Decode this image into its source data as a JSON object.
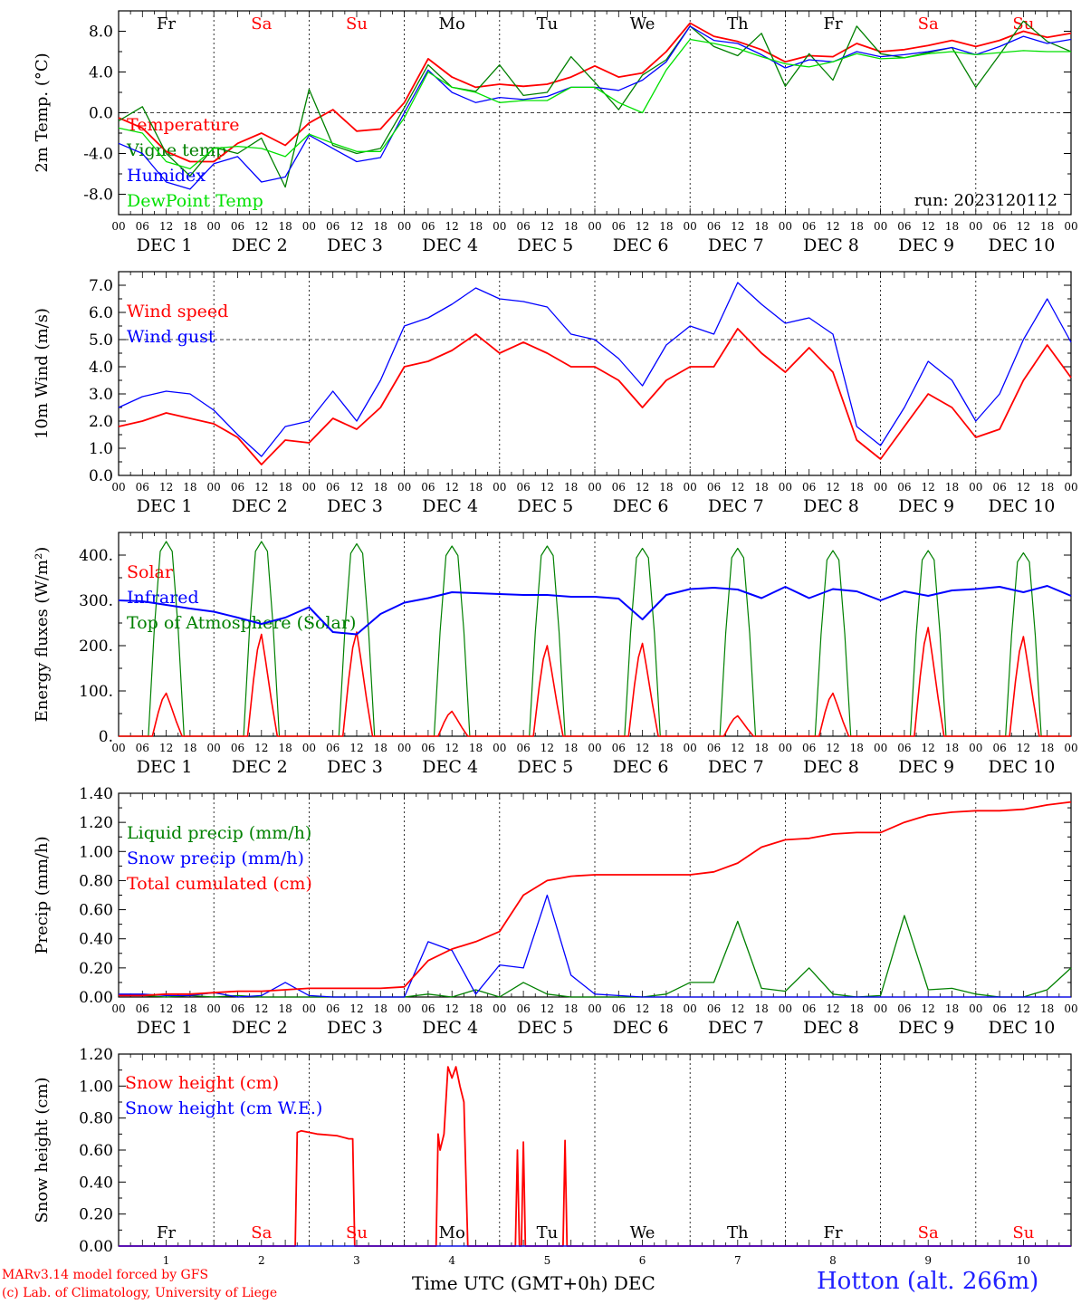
{
  "footer": {
    "model": "MARv3.14 model forced by GFS",
    "credit": "(c) Lab. of Climatology, University of Liege",
    "xlabel": "Time UTC (GMT+0h) DEC",
    "station": "Hotton (alt. 266m)"
  },
  "colors": {
    "red": "#ff0000",
    "green": "#008000",
    "blue": "#0000ff",
    "lightgreen": "#00e000",
    "weekend": "#ff0000",
    "weekday": "#000000"
  },
  "chart_data": [
    {
      "type": "line",
      "ylabel": "2m Temp. (°C)",
      "ylim": [
        -10,
        10
      ],
      "yticks": [
        -8,
        -4,
        0,
        4,
        8
      ],
      "ytick_labels": [
        "-8.0",
        "-4.0",
        "0.0",
        "4.0",
        "8.0"
      ],
      "ref_line": 0,
      "annotation": "run: 2023120112",
      "day_labels": [
        "Fr",
        "Sa",
        "Su",
        "Mo",
        "Tu",
        "We",
        "Th",
        "Fr",
        "Sa",
        "Su"
      ],
      "day_labels_pos": "top",
      "x_hours": [
        0,
        6,
        12,
        18,
        24,
        30,
        36,
        42,
        48,
        54,
        60,
        66,
        72,
        78,
        84,
        90,
        96,
        102,
        108,
        114,
        120,
        126,
        132,
        138,
        144,
        150,
        156,
        162,
        168,
        174,
        180,
        186,
        192,
        198,
        204,
        210,
        216,
        222,
        228,
        234,
        240
      ],
      "series": [
        {
          "name": "Temperature",
          "color": "red",
          "values": [
            -0.5,
            -1.5,
            -3.8,
            -4.8,
            -4.8,
            -3.0,
            -2.0,
            -3.2,
            -1.0,
            0.3,
            -1.8,
            -1.6,
            1.0,
            5.3,
            3.5,
            2.5,
            2.8,
            2.6,
            2.8,
            3.5,
            4.6,
            3.5,
            3.9,
            6.0,
            8.8,
            7.5,
            7.0,
            6.2,
            5.0,
            5.6,
            5.5,
            6.8,
            6.0,
            6.2,
            6.6,
            7.1,
            6.5,
            7.1,
            8.0,
            7.4,
            7.8
          ]
        },
        {
          "name": "Vigne temp",
          "color": "green",
          "values": [
            -0.8,
            0.6,
            -4.0,
            -6.2,
            -3.4,
            -4.0,
            -2.5,
            -7.3,
            2.3,
            -3.2,
            -4.0,
            -3.5,
            0.5,
            4.7,
            2.5,
            2.1,
            4.7,
            1.7,
            2.0,
            5.5,
            3.0,
            0.3,
            3.7,
            5.2,
            8.5,
            6.5,
            5.6,
            7.8,
            2.6,
            5.8,
            3.2,
            8.5,
            5.8,
            5.4,
            5.9,
            6.4,
            2.5,
            5.7,
            9.0,
            7.0,
            6.0
          ]
        },
        {
          "name": "Humidex",
          "color": "blue",
          "values": [
            -3.0,
            -4.0,
            -6.8,
            -7.5,
            -5.0,
            -4.3,
            -6.8,
            -6.3,
            -2.2,
            -3.5,
            -4.8,
            -4.4,
            0.0,
            4.2,
            2.0,
            1.0,
            1.5,
            1.3,
            1.6,
            2.5,
            2.5,
            2.2,
            3.2,
            5.0,
            8.5,
            7.1,
            6.8,
            5.7,
            4.4,
            5.2,
            5.0,
            6.0,
            5.5,
            5.7,
            6.0,
            6.4,
            5.7,
            6.5,
            7.5,
            6.8,
            7.2
          ]
        },
        {
          "name": "DewPoint Temp",
          "color": "lightgreen",
          "values": [
            -1.5,
            -2.0,
            -4.8,
            -5.5,
            -3.5,
            -3.3,
            -3.5,
            -4.3,
            -2.1,
            -3.0,
            -3.8,
            -3.8,
            -0.5,
            4.0,
            2.5,
            2.0,
            1.0,
            1.2,
            1.2,
            2.5,
            2.5,
            1.0,
            0.0,
            4.2,
            7.2,
            6.8,
            6.3,
            5.5,
            4.8,
            4.5,
            5.0,
            5.8,
            5.3,
            5.4,
            5.8,
            6.0,
            5.7,
            5.9,
            6.1,
            6.0,
            6.0
          ]
        }
      ]
    },
    {
      "type": "line",
      "ylabel": "10m Wind (m/s)",
      "ylim": [
        0,
        7.5
      ],
      "yticks": [
        0,
        1,
        2,
        3,
        4,
        5,
        6,
        7
      ],
      "ytick_labels": [
        "0.0",
        "1.0",
        "2.0",
        "3.0",
        "4.0",
        "5.0",
        "6.0",
        "7.0"
      ],
      "ref_line": 5,
      "x_hours": [
        0,
        6,
        12,
        18,
        24,
        30,
        36,
        42,
        48,
        54,
        60,
        66,
        72,
        78,
        84,
        90,
        96,
        102,
        108,
        114,
        120,
        126,
        132,
        138,
        144,
        150,
        156,
        162,
        168,
        174,
        180,
        186,
        192,
        198,
        204,
        210,
        216,
        222,
        228,
        234,
        240
      ],
      "series": [
        {
          "name": "Wind speed",
          "color": "red",
          "values": [
            1.8,
            2.0,
            2.3,
            2.1,
            1.9,
            1.4,
            0.4,
            1.3,
            1.2,
            2.1,
            1.7,
            2.5,
            4.0,
            4.2,
            4.6,
            5.2,
            4.5,
            4.9,
            4.5,
            4.0,
            4.0,
            3.5,
            2.5,
            3.5,
            4.0,
            4.0,
            5.4,
            4.5,
            3.8,
            4.7,
            3.8,
            1.3,
            0.6,
            1.8,
            3.0,
            2.5,
            1.4,
            1.7,
            3.5,
            4.8,
            3.6
          ]
        },
        {
          "name": "Wind gust",
          "color": "blue",
          "values": [
            2.5,
            2.9,
            3.1,
            3.0,
            2.4,
            1.5,
            0.7,
            1.8,
            2.0,
            3.1,
            2.0,
            3.5,
            5.5,
            5.8,
            6.3,
            6.9,
            6.5,
            6.4,
            6.2,
            5.2,
            5.0,
            4.3,
            3.3,
            4.8,
            5.5,
            5.2,
            7.1,
            6.3,
            5.6,
            5.8,
            5.2,
            1.8,
            1.1,
            2.5,
            4.2,
            3.5,
            2.0,
            3.0,
            5.0,
            6.5,
            4.9
          ]
        }
      ]
    },
    {
      "type": "line",
      "ylabel": "Energy fluxes (W/m²)",
      "ylim": [
        0,
        450
      ],
      "yticks": [
        0,
        100,
        200,
        300,
        400
      ],
      "ytick_labels": [
        "0.",
        "100.",
        "200.",
        "300.",
        "400."
      ],
      "solar_peaks": [
        95,
        225,
        230,
        55,
        200,
        205,
        45,
        95,
        240,
        220
      ],
      "toa_peaks": [
        430,
        430,
        425,
        420,
        420,
        415,
        415,
        410,
        410,
        405
      ],
      "infrared": {
        "name": "Infrared",
        "color": "blue",
        "x_hours": [
          0,
          6,
          12,
          18,
          24,
          30,
          36,
          42,
          48,
          54,
          60,
          66,
          72,
          78,
          84,
          90,
          96,
          102,
          108,
          114,
          120,
          126,
          132,
          138,
          144,
          150,
          156,
          162,
          168,
          174,
          180,
          186,
          192,
          198,
          204,
          210,
          216,
          222,
          228,
          234,
          240
        ],
        "values": [
          300,
          298,
          290,
          282,
          275,
          262,
          248,
          262,
          285,
          230,
          225,
          270,
          295,
          305,
          318,
          316,
          314,
          312,
          312,
          308,
          308,
          304,
          258,
          312,
          325,
          328,
          324,
          305,
          330,
          305,
          325,
          320,
          300,
          320,
          310,
          322,
          325,
          330,
          318,
          332,
          310
        ]
      },
      "series_names": [
        {
          "name": "Solar",
          "color": "red"
        },
        {
          "name": "Infrared",
          "color": "blue"
        },
        {
          "name": "Top of Atmosphere (Solar)",
          "color": "green"
        }
      ]
    },
    {
      "type": "line",
      "ylabel": "Precip (mm/h)",
      "ylim": [
        0,
        1.4
      ],
      "yticks": [
        0,
        0.2,
        0.4,
        0.6,
        0.8,
        1.0,
        1.2,
        1.4
      ],
      "ytick_labels": [
        "0.00",
        "0.20",
        "0.40",
        "0.60",
        "0.80",
        "1.00",
        "1.20",
        "1.40"
      ],
      "x_hours": [
        0,
        6,
        12,
        18,
        24,
        30,
        36,
        42,
        48,
        54,
        60,
        66,
        72,
        78,
        84,
        90,
        96,
        102,
        108,
        114,
        120,
        126,
        132,
        138,
        144,
        150,
        156,
        162,
        168,
        174,
        180,
        186,
        192,
        198,
        204,
        210,
        216,
        222,
        228,
        234,
        240
      ],
      "series": [
        {
          "name": "Liquid precip (mm/h)",
          "color": "green",
          "values": [
            0.01,
            0.01,
            0.0,
            0.01,
            0.0,
            0.01,
            0.0,
            0.0,
            0.0,
            0.0,
            0.0,
            0.0,
            0.0,
            0.02,
            0.0,
            0.05,
            0.0,
            0.1,
            0.02,
            0.0,
            0.0,
            0.0,
            0.0,
            0.02,
            0.1,
            0.1,
            0.52,
            0.06,
            0.04,
            0.2,
            0.02,
            0.0,
            0.01,
            0.56,
            0.05,
            0.06,
            0.02,
            0.0,
            0.0,
            0.05,
            0.2
          ]
        },
        {
          "name": "Snow precip (mm/h)",
          "color": "blue",
          "values": [
            0.02,
            0.02,
            0.01,
            0.01,
            0.03,
            0.0,
            0.01,
            0.1,
            0.01,
            0.0,
            0.0,
            0.0,
            0.0,
            0.38,
            0.32,
            0.02,
            0.22,
            0.2,
            0.7,
            0.15,
            0.02,
            0.01,
            0.0,
            0.0,
            0.0,
            0.0,
            0.0,
            0.0,
            0.0,
            0.0,
            0.0,
            0.0,
            0.0,
            0.0,
            0.0,
            0.0,
            0.0,
            0.0,
            0.0,
            0.0,
            0.0
          ]
        },
        {
          "name": "Total cumulated (cm)",
          "color": "red",
          "values": [
            0.01,
            0.01,
            0.02,
            0.02,
            0.03,
            0.04,
            0.04,
            0.05,
            0.06,
            0.06,
            0.06,
            0.06,
            0.07,
            0.25,
            0.33,
            0.38,
            0.45,
            0.7,
            0.8,
            0.83,
            0.84,
            0.84,
            0.84,
            0.84,
            0.84,
            0.86,
            0.92,
            1.03,
            1.08,
            1.09,
            1.12,
            1.13,
            1.13,
            1.2,
            1.25,
            1.27,
            1.28,
            1.28,
            1.29,
            1.32,
            1.34
          ]
        }
      ]
    },
    {
      "type": "line",
      "ylabel": "Snow height (cm)",
      "ylim": [
        0,
        1.2
      ],
      "yticks": [
        0,
        0.2,
        0.4,
        0.6,
        0.8,
        1.0,
        1.2
      ],
      "ytick_labels": [
        "0.00",
        "0.20",
        "0.40",
        "0.60",
        "0.80",
        "1.00",
        "1.20"
      ],
      "day_labels": [
        "Fr",
        "Sa",
        "Su",
        "Mo",
        "Tu",
        "We",
        "Th",
        "Fr",
        "Sa",
        "Su"
      ],
      "day_labels_pos": "bottom",
      "x_labels": [
        "1",
        "2",
        "3",
        "4",
        "5",
        "6",
        "7",
        "8",
        "9",
        "10"
      ],
      "series": [
        {
          "name": "Snow height (cm)",
          "color": "red",
          "x_hours": [
            0,
            44.5,
            45,
            46,
            50,
            55,
            58,
            59,
            59.5,
            80,
            80.5,
            81,
            82,
            83,
            84,
            85,
            86,
            87,
            88,
            88.5,
            100,
            100.5,
            101,
            101.5,
            102,
            102.5,
            103,
            103.5,
            112,
            112.5,
            113,
            113.5,
            240
          ],
          "values": [
            0,
            0,
            0.71,
            0.72,
            0.7,
            0.69,
            0.67,
            0.67,
            0,
            0,
            0.7,
            0.6,
            0.7,
            1.12,
            1.05,
            1.12,
            1.0,
            0.9,
            0,
            0,
            0,
            0.6,
            0,
            0,
            0.65,
            0,
            0,
            0,
            0,
            0.66,
            0,
            0,
            0
          ]
        },
        {
          "name": "Snow height (cm W.E.)",
          "color": "blue",
          "x_hours": [
            0,
            240
          ],
          "values": [
            0,
            0
          ]
        }
      ]
    }
  ],
  "axis": {
    "hour_ticks": [
      "00",
      "06",
      "12",
      "18"
    ],
    "final_tick": "00",
    "day_row": [
      "DEC  1",
      "DEC  2",
      "DEC  3",
      "DEC  4",
      "DEC  5",
      "DEC  6",
      "DEC  7",
      "DEC  8",
      "DEC  9",
      "DEC 10"
    ]
  }
}
